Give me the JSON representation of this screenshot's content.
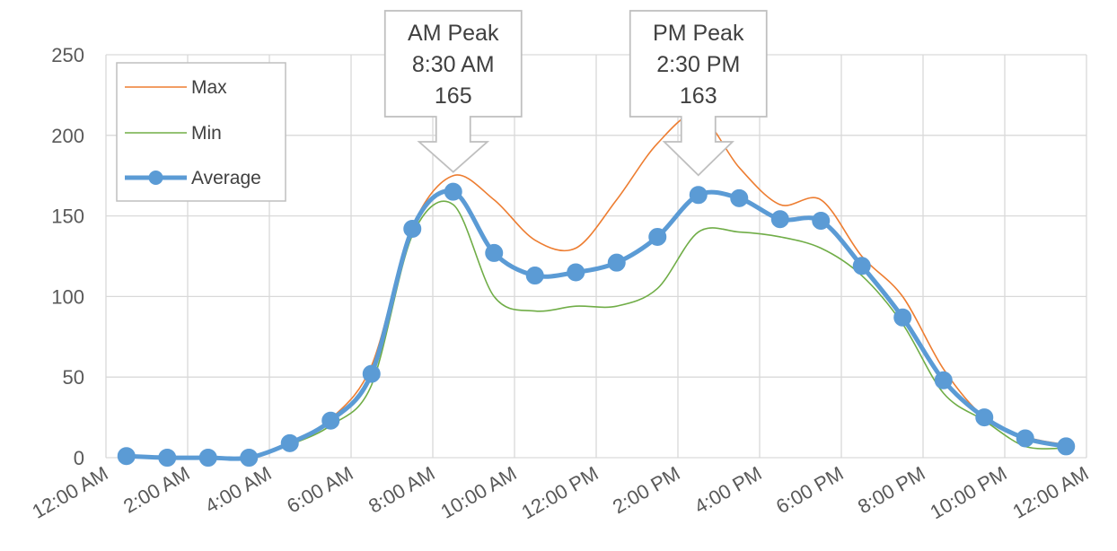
{
  "chart_data": {
    "type": "line",
    "title": "",
    "xlabel": "",
    "ylabel": "",
    "ylim": [
      0,
      250
    ],
    "xlim": [
      0,
      24
    ],
    "yticks": [
      "0",
      "50",
      "100",
      "150",
      "200",
      "250"
    ],
    "xticks": [
      "12:00 AM",
      "2:00 AM",
      "4:00 AM",
      "6:00 AM",
      "8:00 AM",
      "10:00 AM",
      "12:00 PM",
      "2:00 PM",
      "4:00 PM",
      "6:00 PM",
      "8:00 PM",
      "10:00 PM",
      "12:00 AM"
    ],
    "grid": true,
    "legend_position": "top-left",
    "series": [
      {
        "name": "Max",
        "color": "#ed7d31",
        "x": [
          0.5,
          1.5,
          2.5,
          3.5,
          4.5,
          5.5,
          6.5,
          7.5,
          8.5,
          9.5,
          10.5,
          11.5,
          12.5,
          13.5,
          14.5,
          15.5,
          16.5,
          17.5,
          18.5,
          19.5,
          20.5,
          21.5,
          22.5,
          23.5
        ],
        "values": [
          1,
          0,
          0,
          0,
          9,
          24,
          57,
          143,
          175,
          160,
          135,
          130,
          160,
          195,
          213,
          180,
          157,
          160,
          125,
          100,
          55,
          25,
          13,
          8
        ]
      },
      {
        "name": "Min",
        "color": "#70ad47",
        "x": [
          0.5,
          1.5,
          2.5,
          3.5,
          4.5,
          5.5,
          6.5,
          7.5,
          8.5,
          9.5,
          10.5,
          11.5,
          12.5,
          13.5,
          14.5,
          15.5,
          16.5,
          17.5,
          18.5,
          19.5,
          20.5,
          21.5,
          22.5,
          23.5
        ],
        "values": [
          1,
          0,
          0,
          0,
          8,
          20,
          45,
          138,
          157,
          100,
          91,
          94,
          94,
          105,
          140,
          140,
          137,
          130,
          113,
          83,
          40,
          23,
          7,
          6
        ]
      },
      {
        "name": "Average",
        "color": "#5b9bd5",
        "x": [
          0.5,
          1.5,
          2.5,
          3.5,
          4.5,
          5.5,
          6.5,
          7.5,
          8.5,
          9.5,
          10.5,
          11.5,
          12.5,
          13.5,
          14.5,
          15.5,
          16.5,
          17.5,
          18.5,
          19.5,
          20.5,
          21.5,
          22.5,
          23.5
        ],
        "values": [
          1,
          0,
          0,
          0,
          9,
          23,
          52,
          142,
          165,
          127,
          113,
          115,
          121,
          137,
          163,
          161,
          148,
          147,
          119,
          87,
          48,
          25,
          12,
          7
        ]
      }
    ],
    "annotations": [
      {
        "lines": [
          "AM Peak",
          "8:30 AM",
          "165"
        ],
        "x": 8.5,
        "y": 165
      },
      {
        "lines": [
          "PM Peak",
          "2:30 PM",
          "163"
        ],
        "x": 14.5,
        "y": 163
      }
    ]
  }
}
